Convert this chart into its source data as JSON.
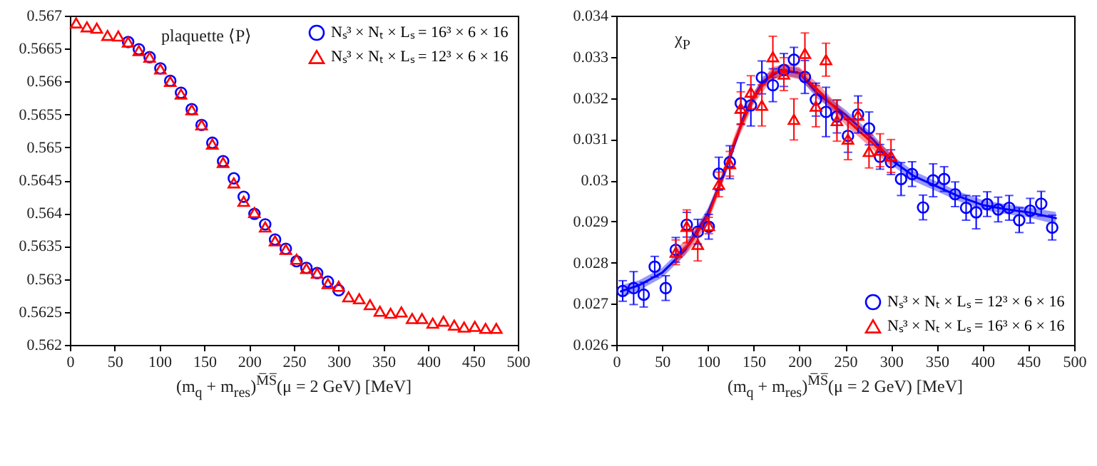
{
  "chart_data": [
    {
      "type": "scatter",
      "title": "plaquette ⟨P⟩",
      "xlabel": "(m$_{q}$ + m$_{res}$)$^{M̅S̅}$(μ = 2 GeV) [MeV]",
      "xlim": [
        0,
        500
      ],
      "xticks": [
        0,
        50,
        100,
        150,
        200,
        250,
        300,
        350,
        400,
        450,
        500
      ],
      "ylim": [
        0.562,
        0.567
      ],
      "yticks": [
        0.562,
        0.5625,
        0.563,
        0.5635,
        0.564,
        0.5645,
        0.565,
        0.5655,
        0.566,
        0.5665,
        0.567
      ],
      "legend": "top right",
      "series": [
        {
          "name": "Nₛ³ × Nₜ × Lₛ = 16³ × 6 × 16",
          "color": "#0000ff",
          "marker": "circle",
          "x": [
            65,
            77,
            89,
            101,
            112,
            124,
            136,
            147,
            159,
            171,
            183,
            194,
            206,
            218,
            229,
            241,
            253,
            264,
            276,
            288,
            300
          ],
          "values": [
            0.5666,
            0.56649,
            0.56637,
            0.5662,
            0.56601,
            0.56583,
            0.56558,
            0.56534,
            0.56507,
            0.56479,
            0.56453,
            0.56425,
            0.56399,
            0.56383,
            0.5636,
            0.56346,
            0.56327,
            0.56317,
            0.56309,
            0.56296,
            0.56283
          ]
        },
        {
          "name": "Nₛ³ × Nₜ × Lₛ = 12³ × 6 × 16",
          "color": "#ff0000",
          "marker": "triangle",
          "x": [
            7,
            19,
            30,
            42,
            54,
            65,
            77,
            89,
            101,
            112,
            124,
            136,
            147,
            159,
            171,
            183,
            194,
            206,
            218,
            229,
            241,
            253,
            264,
            276,
            288,
            300,
            311,
            323,
            335,
            346,
            358,
            370,
            382,
            393,
            405,
            417,
            429,
            440,
            452,
            464,
            476
          ],
          "values": [
            0.56689,
            0.56683,
            0.56681,
            0.5667,
            0.56669,
            0.5666,
            0.56647,
            0.56637,
            0.56619,
            0.566,
            0.56581,
            0.56557,
            0.56534,
            0.56505,
            0.56477,
            0.56446,
            0.56418,
            0.56401,
            0.56379,
            0.56358,
            0.56345,
            0.5633,
            0.56316,
            0.56309,
            0.56293,
            0.56289,
            0.56273,
            0.5627,
            0.56261,
            0.56251,
            0.56248,
            0.5625,
            0.5624,
            0.5624,
            0.56233,
            0.56236,
            0.5623,
            0.56227,
            0.56228,
            0.56225,
            0.56225
          ]
        }
      ]
    },
    {
      "type": "scatter",
      "title": "χ$_{P}$",
      "xlabel": "(m$_{q}$ + m$_{res}$)$^{M̅S̅}$(μ = 2 GeV) [MeV]",
      "xlim": [
        0,
        500
      ],
      "xticks": [
        0,
        50,
        100,
        150,
        200,
        250,
        300,
        350,
        400,
        450,
        500
      ],
      "ylim": [
        0.026,
        0.034
      ],
      "yticks": [
        0.026,
        0.027,
        0.028,
        0.029,
        0.03,
        0.031,
        0.032,
        0.033,
        0.034
      ],
      "legend": "bottom right",
      "series": [
        {
          "type": "line",
          "color": "#0000ff",
          "x": [
            5,
            25,
            50,
            75,
            100,
            115,
            125,
            140,
            160,
            180,
            200,
            220,
            250,
            280,
            300,
            325,
            350,
            375,
            400,
            425,
            450,
            480
          ],
          "values": [
            0.0273,
            0.02745,
            0.02775,
            0.0283,
            0.0292,
            0.03,
            0.0306,
            0.0316,
            0.0324,
            0.03268,
            0.0326,
            0.0321,
            0.0316,
            0.031,
            0.0305,
            0.0301,
            0.02985,
            0.0296,
            0.0294,
            0.0293,
            0.02922,
            0.02908
          ],
          "lower": [
            0.02715,
            0.02733,
            0.02763,
            0.02818,
            0.02908,
            0.02988,
            0.03048,
            0.03148,
            0.03228,
            0.03256,
            0.03248,
            0.03198,
            0.03148,
            0.03088,
            0.03038,
            0.02998,
            0.02973,
            0.02948,
            0.02928,
            0.02918,
            0.0291,
            0.02893
          ],
          "upper": [
            0.02745,
            0.02757,
            0.02787,
            0.02842,
            0.02932,
            0.03012,
            0.03072,
            0.03172,
            0.03252,
            0.0328,
            0.03272,
            0.03222,
            0.03172,
            0.03112,
            0.03062,
            0.03022,
            0.02997,
            0.02972,
            0.02952,
            0.02942,
            0.02934,
            0.02923
          ]
        },
        {
          "type": "line",
          "color": "#ff0000",
          "x": [
            65,
            80,
            100,
            115,
            130,
            150,
            170,
            185,
            200,
            220,
            250,
            280,
            300
          ],
          "values": [
            0.02815,
            0.02845,
            0.0291,
            0.03,
            0.031,
            0.032,
            0.0326,
            0.03268,
            0.0326,
            0.0322,
            0.0315,
            0.0309,
            0.0305
          ],
          "lower": [
            0.02795,
            0.0283,
            0.02895,
            0.02985,
            0.03085,
            0.03185,
            0.03245,
            0.03253,
            0.03245,
            0.03205,
            0.03135,
            0.03075,
            0.03033
          ],
          "upper": [
            0.02835,
            0.0286,
            0.02925,
            0.03015,
            0.03115,
            0.03215,
            0.03275,
            0.03283,
            0.03275,
            0.03235,
            0.03165,
            0.03105,
            0.03067
          ]
        },
        {
          "name": "Nₛ³ × Nₜ × Lₛ = 12³ × 6 × 16",
          "color": "#0000ff",
          "marker": "circle",
          "x": [
            7,
            19,
            30,
            42,
            54,
            65,
            77,
            89,
            101,
            112,
            124,
            136,
            147,
            159,
            171,
            183,
            194,
            206,
            218,
            229,
            241,
            253,
            264,
            276,
            288,
            300,
            311,
            323,
            335,
            346,
            358,
            370,
            382,
            393,
            405,
            417,
            429,
            440,
            452,
            464,
            476
          ],
          "values": [
            0.02731,
            0.02738,
            0.02722,
            0.0279,
            0.02738,
            0.02831,
            0.02892,
            0.02875,
            0.02887,
            0.03016,
            0.03044,
            0.03187,
            0.03182,
            0.0325,
            0.03231,
            0.03268,
            0.03293,
            0.03251,
            0.03196,
            0.03166,
            0.03155,
            0.03108,
            0.0316,
            0.03126,
            0.03057,
            0.03044,
            0.03003,
            0.03015,
            0.02934,
            0.03,
            0.03003,
            0.02966,
            0.02933,
            0.02922,
            0.02942,
            0.02929,
            0.02933,
            0.02903,
            0.02926,
            0.02943,
            0.02885
          ],
          "errors": [
            0.00025,
            0.0004,
            0.0003,
            0.00025,
            0.0003,
            0.0003,
            0.0003,
            0.0003,
            0.0003,
            0.0004,
            0.0004,
            0.0005,
            0.0005,
            0.0004,
            0.0004,
            0.0004,
            0.0003,
            0.0004,
            0.0004,
            0.0006,
            0.0004,
            0.0004,
            0.00045,
            0.0004,
            0.0003,
            0.0003,
            0.0004,
            0.0003,
            0.0003,
            0.0004,
            0.0003,
            0.0003,
            0.0003,
            0.0004,
            0.0003,
            0.0003,
            0.0003,
            0.0003,
            0.0003,
            0.0003,
            0.0003
          ]
        },
        {
          "name": "Nₛ³ × Nₜ × Lₛ = 16³ × 6 × 16",
          "color": "#ff0000",
          "marker": "triangle",
          "x": [
            65,
            77,
            89,
            101,
            112,
            124,
            136,
            147,
            159,
            171,
            183,
            194,
            206,
            218,
            229,
            241,
            253,
            264,
            276,
            288,
            300
          ],
          "values": [
            0.02825,
            0.02888,
            0.02844,
            0.0289,
            0.0299,
            0.0304,
            0.03175,
            0.03214,
            0.03182,
            0.033,
            0.03258,
            0.03148,
            0.03308,
            0.0318,
            0.03293,
            0.03145,
            0.031,
            0.03158,
            0.0307,
            0.03073,
            0.03059
          ],
          "errors": [
            0.0003,
            0.0004,
            0.0004,
            0.0002,
            0.0003,
            0.0003,
            0.0004,
            0.0004,
            0.0005,
            0.0005,
            0.0004,
            0.0005,
            0.0005,
            0.0005,
            0.0004,
            0.0005,
            0.0005,
            0.0003,
            0.0004,
            0.0004,
            0.0004
          ]
        }
      ]
    }
  ]
}
